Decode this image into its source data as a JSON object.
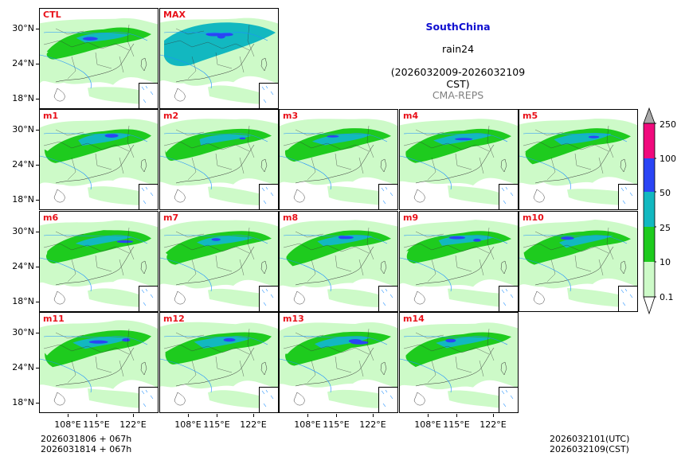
{
  "header": {
    "region": "SouthChina",
    "variable": "rain24",
    "period": "(2026032009-2026032109 CST)",
    "system": "CMA-REPS",
    "region_color": "#1010d0",
    "system_color": "#808080"
  },
  "panels": [
    {
      "id": "CTL",
      "label": "CTL",
      "variant": 0,
      "intensity": 1
    },
    {
      "id": "MAX",
      "label": "MAX",
      "variant": 1,
      "intensity": 3
    },
    {
      "id": "m1",
      "label": "m1",
      "variant": 2,
      "intensity": 1
    },
    {
      "id": "m2",
      "label": "m2",
      "variant": 3,
      "intensity": 1
    },
    {
      "id": "m3",
      "label": "m3",
      "variant": 4,
      "intensity": 1
    },
    {
      "id": "m4",
      "label": "m4",
      "variant": 5,
      "intensity": 1
    },
    {
      "id": "m5",
      "label": "m5",
      "variant": 6,
      "intensity": 1
    },
    {
      "id": "m6",
      "label": "m6",
      "variant": 7,
      "intensity": 1
    },
    {
      "id": "m7",
      "label": "m7",
      "variant": 8,
      "intensity": 1
    },
    {
      "id": "m8",
      "label": "m8",
      "variant": 9,
      "intensity": 2
    },
    {
      "id": "m9",
      "label": "m9",
      "variant": 10,
      "intensity": 2
    },
    {
      "id": "m10",
      "label": "m10",
      "variant": 11,
      "intensity": 1
    },
    {
      "id": "m11",
      "label": "m11",
      "variant": 12,
      "intensity": 2
    },
    {
      "id": "m12",
      "label": "m12",
      "variant": 13,
      "intensity": 1
    },
    {
      "id": "m13",
      "label": "m13",
      "variant": 14,
      "intensity": 2
    },
    {
      "id": "m14",
      "label": "m14",
      "variant": 15,
      "intensity": 1
    }
  ],
  "axes": {
    "lat_labels": [
      "30°N",
      "24°N",
      "18°N"
    ],
    "lon_labels": [
      "108°E",
      "115°E",
      "122°E"
    ]
  },
  "colorbar": {
    "levels": [
      "250",
      "100",
      "50",
      "25",
      "10",
      "0.1"
    ],
    "colors": [
      "#f00a7d",
      "#2a45f5",
      "#12b8c0",
      "#1ecb1e",
      "#cdfac8"
    ],
    "extend_max_color": "#a9a9a9",
    "extend_min_color": "#ffffff"
  },
  "footer": {
    "init_utc": "2026031806  +  067h",
    "init_cst": "2026031814  +  067h",
    "valid_utc": "2026032101(UTC)",
    "valid_cst": "2026032109(CST)"
  },
  "map_colors": {
    "light": "#cdfac8",
    "green": "#1ecb1e",
    "cyan": "#12b8c0",
    "blue": "#2a45f5",
    "river": "#1e90ff",
    "border": "#333333"
  }
}
